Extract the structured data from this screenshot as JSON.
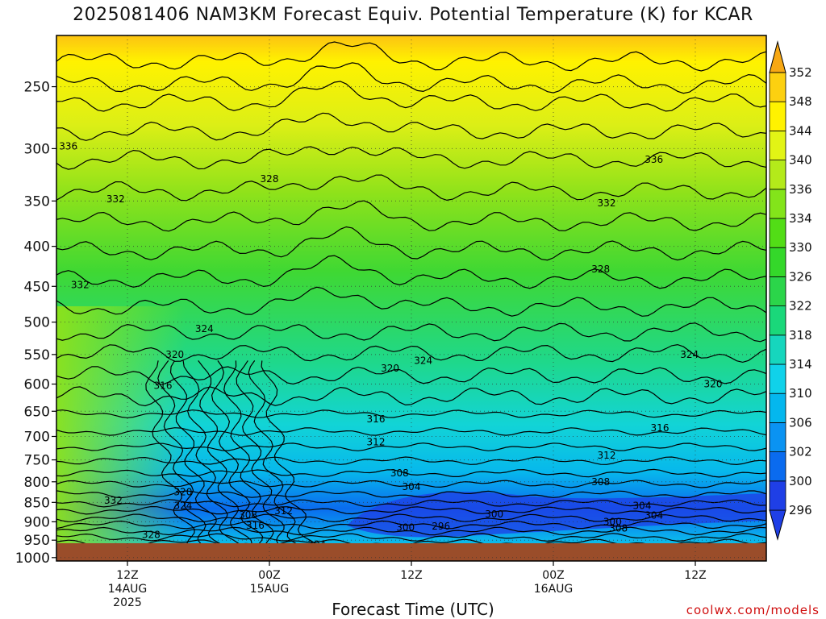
{
  "title": "2025081406 NAM3KM Forecast Equiv. Potential Temperature (K) for KCAR",
  "credit": "coolwx.com/models",
  "chart_data": {
    "type": "heatmap",
    "title": "2025081406 NAM3KM Forecast Equiv. Potential Temperature (K) for KCAR",
    "xlabel": "Forecast Time (UTC)",
    "ylabel": "",
    "y_scale": "log (pressure, hPa, inverted)",
    "ylim": [
      1010,
      215
    ],
    "y_ticks": [
      250,
      300,
      350,
      400,
      450,
      500,
      550,
      600,
      650,
      700,
      750,
      800,
      850,
      900,
      950,
      1000
    ],
    "x_range_hours": [
      0,
      60
    ],
    "x_ticks": [
      {
        "hour": 6,
        "lines": [
          "12Z",
          "14AUG",
          "2025"
        ]
      },
      {
        "hour": 18,
        "lines": [
          "00Z",
          "15AUG"
        ]
      },
      {
        "hour": 30,
        "lines": [
          "12Z"
        ]
      },
      {
        "hour": 42,
        "lines": [
          "00Z",
          "16AUG"
        ]
      },
      {
        "hour": 54,
        "lines": [
          "12Z"
        ]
      }
    ],
    "colorbar_levels": [
      296,
      300,
      302,
      306,
      310,
      314,
      318,
      322,
      326,
      330,
      334,
      336,
      340,
      344,
      348,
      352
    ],
    "colorbar_colors": [
      "#1f3fe6",
      "#0a6bef",
      "#0a93f2",
      "#04b7ee",
      "#10d2ea",
      "#16d6bd",
      "#1ad87a",
      "#2bd54a",
      "#34d82a",
      "#52dd16",
      "#83e41a",
      "#b4ea1a",
      "#e2f415",
      "#fff200",
      "#fcd010",
      "#f7a814"
    ],
    "contour_labels": [
      {
        "value": "336",
        "hour": 1.0,
        "p": 298
      },
      {
        "value": "332",
        "hour": 5.0,
        "p": 348
      },
      {
        "value": "328",
        "hour": 18.0,
        "p": 328
      },
      {
        "value": "336",
        "hour": 50.5,
        "p": 310
      },
      {
        "value": "332",
        "hour": 46.5,
        "p": 352
      },
      {
        "value": "328",
        "hour": 46.0,
        "p": 428
      },
      {
        "value": "332",
        "hour": 2.0,
        "p": 448
      },
      {
        "value": "324",
        "hour": 12.5,
        "p": 510
      },
      {
        "value": "320",
        "hour": 10.0,
        "p": 550
      },
      {
        "value": "316",
        "hour": 9.0,
        "p": 603
      },
      {
        "value": "320",
        "hour": 28.2,
        "p": 573
      },
      {
        "value": "324",
        "hour": 31.0,
        "p": 560
      },
      {
        "value": "316",
        "hour": 27.0,
        "p": 665
      },
      {
        "value": "312",
        "hour": 27.0,
        "p": 712
      },
      {
        "value": "324",
        "hour": 53.5,
        "p": 550
      },
      {
        "value": "320",
        "hour": 55.5,
        "p": 600
      },
      {
        "value": "316",
        "hour": 51.0,
        "p": 683
      },
      {
        "value": "312",
        "hour": 46.5,
        "p": 740
      },
      {
        "value": "308",
        "hour": 29.0,
        "p": 780
      },
      {
        "value": "304",
        "hour": 30.0,
        "p": 812
      },
      {
        "value": "308",
        "hour": 46.0,
        "p": 800
      },
      {
        "value": "304",
        "hour": 49.5,
        "p": 858
      },
      {
        "value": "300",
        "hour": 37.0,
        "p": 880
      },
      {
        "value": "300",
        "hour": 29.5,
        "p": 915
      },
      {
        "value": "296",
        "hour": 32.5,
        "p": 912
      },
      {
        "value": "300",
        "hour": 47.0,
        "p": 900
      },
      {
        "value": "308",
        "hour": 47.5,
        "p": 917
      },
      {
        "value": "304",
        "hour": 50.5,
        "p": 883
      },
      {
        "value": "320",
        "hour": 10.7,
        "p": 825
      },
      {
        "value": "324",
        "hour": 10.7,
        "p": 858
      },
      {
        "value": "332",
        "hour": 4.8,
        "p": 845
      },
      {
        "value": "328",
        "hour": 8.0,
        "p": 935
      },
      {
        "value": "308",
        "hour": 16.2,
        "p": 882
      },
      {
        "value": "312",
        "hour": 19.2,
        "p": 872
      },
      {
        "value": "316",
        "hour": 16.8,
        "p": 910
      },
      {
        "value": "304",
        "hour": 22.0,
        "p": 962
      }
    ]
  }
}
